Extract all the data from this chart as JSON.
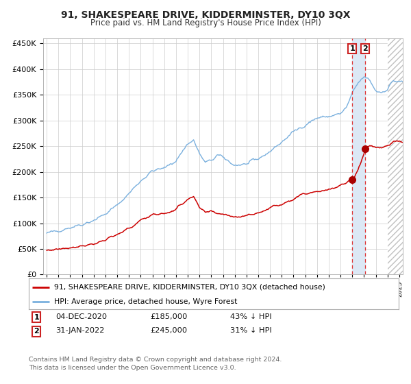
{
  "title": "91, SHAKESPEARE DRIVE, KIDDERMINSTER, DY10 3QX",
  "subtitle": "Price paid vs. HM Land Registry's House Price Index (HPI)",
  "hpi_label": "HPI: Average price, detached house, Wyre Forest",
  "property_label": "91, SHAKESPEARE DRIVE, KIDDERMINSTER, DY10 3QX (detached house)",
  "footer": "Contains HM Land Registry data © Crown copyright and database right 2024.\nThis data is licensed under the Open Government Licence v3.0.",
  "sale1_date_num": 2021.0,
  "sale1_label": "04-DEC-2020",
  "sale1_price": 185000,
  "sale1_pct": "43% ↓ HPI",
  "sale2_date_num": 2022.08,
  "sale2_label": "31-JAN-2022",
  "sale2_price": 245000,
  "sale2_pct": "31% ↓ HPI",
  "hpi_color": "#7ab0de",
  "property_color": "#cc0000",
  "marker_color": "#aa0000",
  "highlight_color": "#dce8f5",
  "dashed_line_color": "#dd3333",
  "grid_color": "#cccccc",
  "background_color": "#ffffff",
  "ylim": [
    0,
    460000
  ],
  "xlim_start": 1994.7,
  "xlim_end": 2025.3,
  "hatch_start": 2024.0,
  "hpi_anchors_years": [
    1995.0,
    1996.0,
    1997.0,
    1998.0,
    1999.0,
    2000.0,
    2001.0,
    2002.0,
    2003.0,
    2004.0,
    2005.0,
    2006.0,
    2007.0,
    2007.5,
    2008.0,
    2008.5,
    2009.0,
    2009.5,
    2010.0,
    2011.0,
    2012.0,
    2013.0,
    2014.0,
    2015.0,
    2016.0,
    2017.0,
    2018.0,
    2019.0,
    2020.0,
    2020.5,
    2021.0,
    2021.5,
    2022.0,
    2022.5,
    2023.0,
    2023.5,
    2024.0,
    2024.5,
    2025.0
  ],
  "hpi_anchors_vals": [
    80000,
    86000,
    92000,
    98000,
    106000,
    118000,
    135000,
    158000,
    183000,
    202000,
    207000,
    222000,
    255000,
    262000,
    235000,
    218000,
    222000,
    232000,
    228000,
    213000,
    215000,
    225000,
    240000,
    258000,
    278000,
    292000,
    305000,
    308000,
    313000,
    325000,
    352000,
    373000,
    385000,
    378000,
    358000,
    355000,
    362000,
    378000,
    375000
  ],
  "prop_anchors_years": [
    1995.0,
    1996.0,
    1997.0,
    1998.0,
    1999.0,
    2000.0,
    2001.0,
    2002.0,
    2003.0,
    2004.0,
    2005.0,
    2006.0,
    2007.0,
    2007.5,
    2008.0,
    2008.5,
    2009.0,
    2010.0,
    2011.0,
    2012.0,
    2013.0,
    2014.0,
    2015.0,
    2016.0,
    2017.0,
    2018.0,
    2019.0,
    2020.0,
    2020.5,
    2021.0,
    2021.5,
    2022.0,
    2022.08,
    2022.5,
    2023.0,
    2023.5,
    2024.0,
    2024.5,
    2025.0
  ],
  "prop_anchors_vals": [
    47000,
    50000,
    53000,
    56000,
    60000,
    67000,
    77000,
    90000,
    105000,
    118000,
    118000,
    127000,
    148000,
    150000,
    130000,
    120000,
    122000,
    118000,
    113000,
    115000,
    120000,
    130000,
    138000,
    148000,
    158000,
    163000,
    165000,
    172000,
    180000,
    185000,
    205000,
    235000,
    245000,
    252000,
    248000,
    248000,
    252000,
    258000,
    258000
  ]
}
